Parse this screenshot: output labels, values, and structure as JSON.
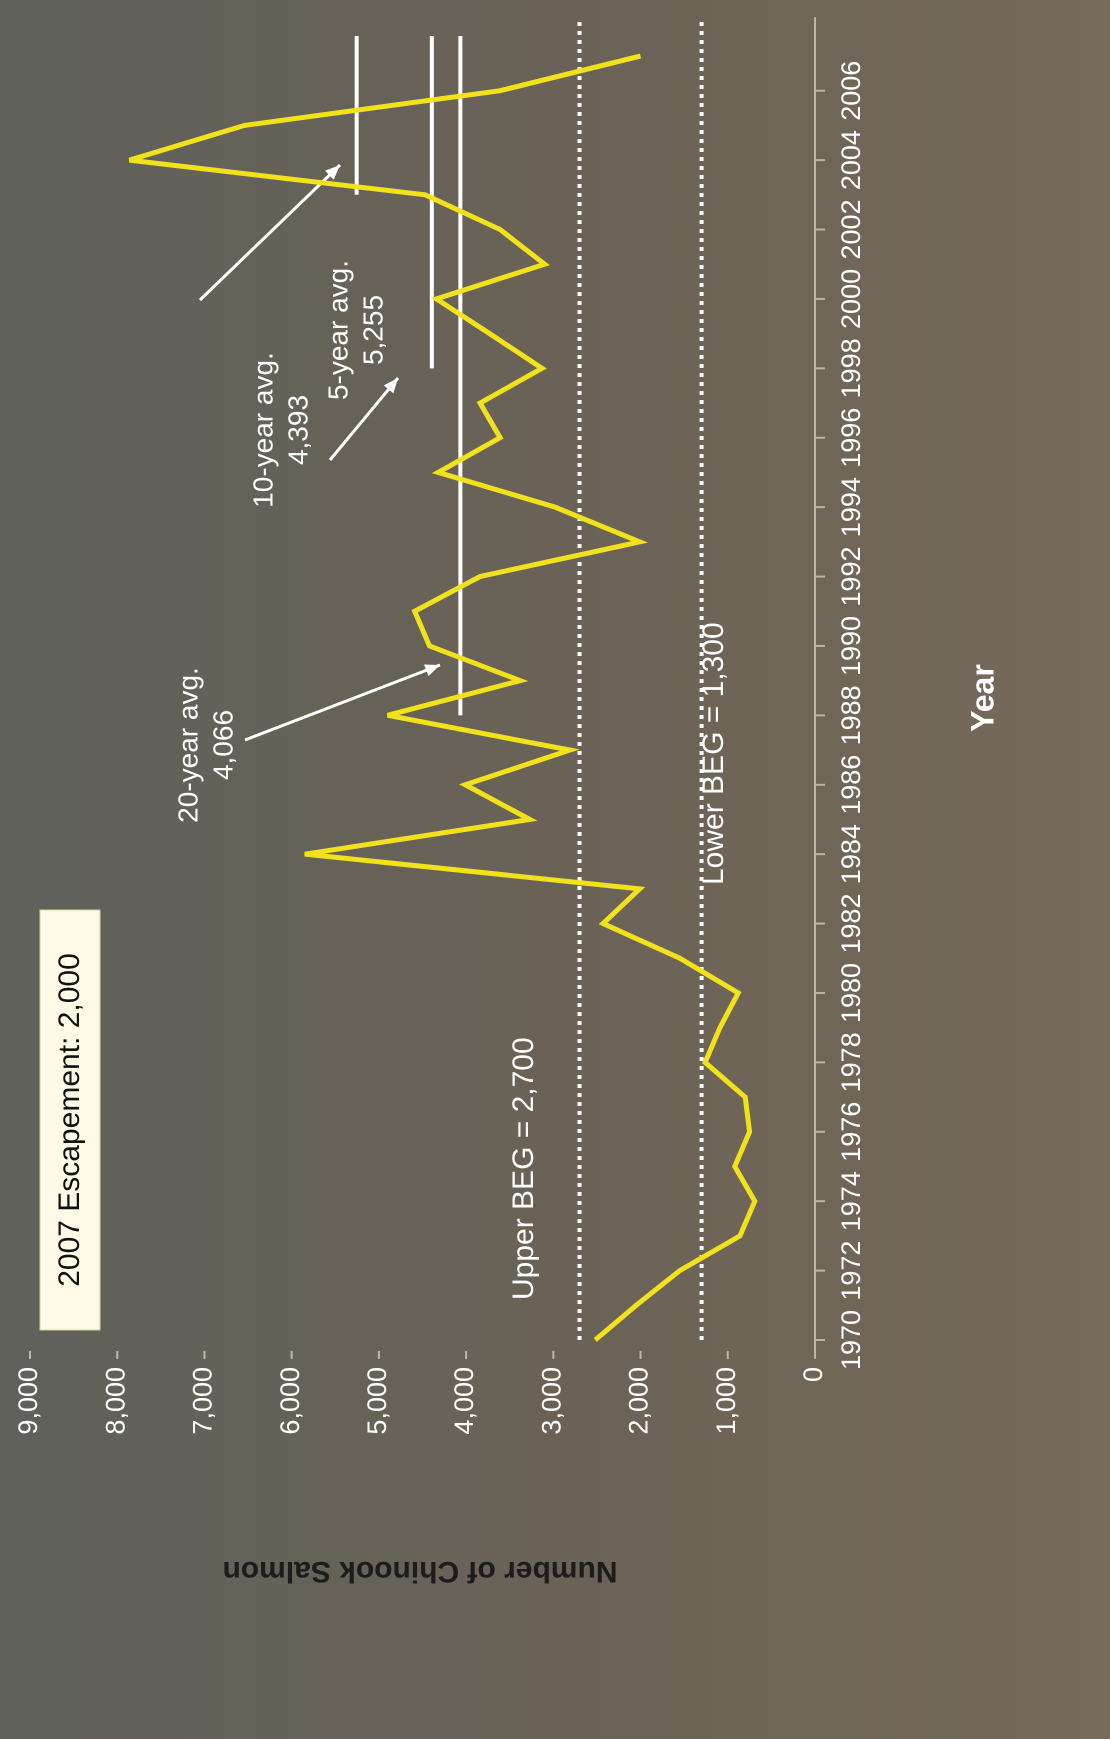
{
  "chart_data": {
    "type": "line",
    "x_label": "Year",
    "y_label": "Number of Chinook Salmon",
    "x": [
      1970,
      1971,
      1972,
      1973,
      1974,
      1975,
      1976,
      1977,
      1978,
      1979,
      1980,
      1981,
      1982,
      1983,
      1984,
      1985,
      1986,
      1987,
      1988,
      1989,
      1990,
      1991,
      1992,
      1993,
      1994,
      1995,
      1996,
      1997,
      1998,
      1999,
      2000,
      2001,
      2002,
      2003,
      2004,
      2005,
      2006,
      2007
    ],
    "series": [
      {
        "name": "Escapement",
        "color": "#f2e21c",
        "values": [
          2520,
          2050,
          1550,
          860,
          690,
          920,
          750,
          800,
          1260,
          1090,
          880,
          1550,
          2430,
          2010,
          5850,
          3270,
          4010,
          2810,
          4900,
          3380,
          4420,
          4590,
          3840,
          2010,
          2980,
          4320,
          3610,
          3840,
          3130,
          3730,
          4340,
          3100,
          3610,
          4470,
          7860,
          6540,
          3610,
          2000
        ]
      }
    ],
    "xlim": [
      1970,
      2007
    ],
    "xticks": [
      1970,
      1972,
      1974,
      1976,
      1978,
      1980,
      1982,
      1984,
      1986,
      1988,
      1990,
      1992,
      1994,
      1996,
      1998,
      2000,
      2002,
      2004,
      2006
    ],
    "ylim": [
      0,
      9000
    ],
    "yticks": [
      0,
      {
        "value": 1000,
        "label": "1,000"
      },
      {
        "value": 2000,
        "label": "2,000"
      },
      {
        "value": 3000,
        "label": "3,000"
      },
      {
        "value": 4000,
        "label": "4,000"
      },
      {
        "value": 5000,
        "label": "5,000"
      },
      {
        "value": 6000,
        "label": "6,000"
      },
      {
        "value": 7000,
        "label": "7,000"
      },
      {
        "value": 8000,
        "label": "8,000"
      },
      {
        "value": 9000,
        "label": "9,000"
      }
    ],
    "averages": [
      {
        "label": "20-year avg.",
        "value": 4066,
        "value_label": "4,066",
        "x": [
          1988,
          2007
        ]
      },
      {
        "label": "10-year avg.",
        "value": 4393,
        "value_label": "4,393",
        "x": [
          1998,
          2007
        ]
      },
      {
        "label": "5-year avg.",
        "value": 5255,
        "value_label": "5,255",
        "x": [
          2003,
          2007
        ]
      }
    ],
    "goals": [
      {
        "label": "Upper BEG = 2,700",
        "value": 2700
      },
      {
        "label": "Lower BEG = 1,300",
        "value": 1300
      }
    ],
    "annotation": "2007 Escapement: 2,000"
  }
}
